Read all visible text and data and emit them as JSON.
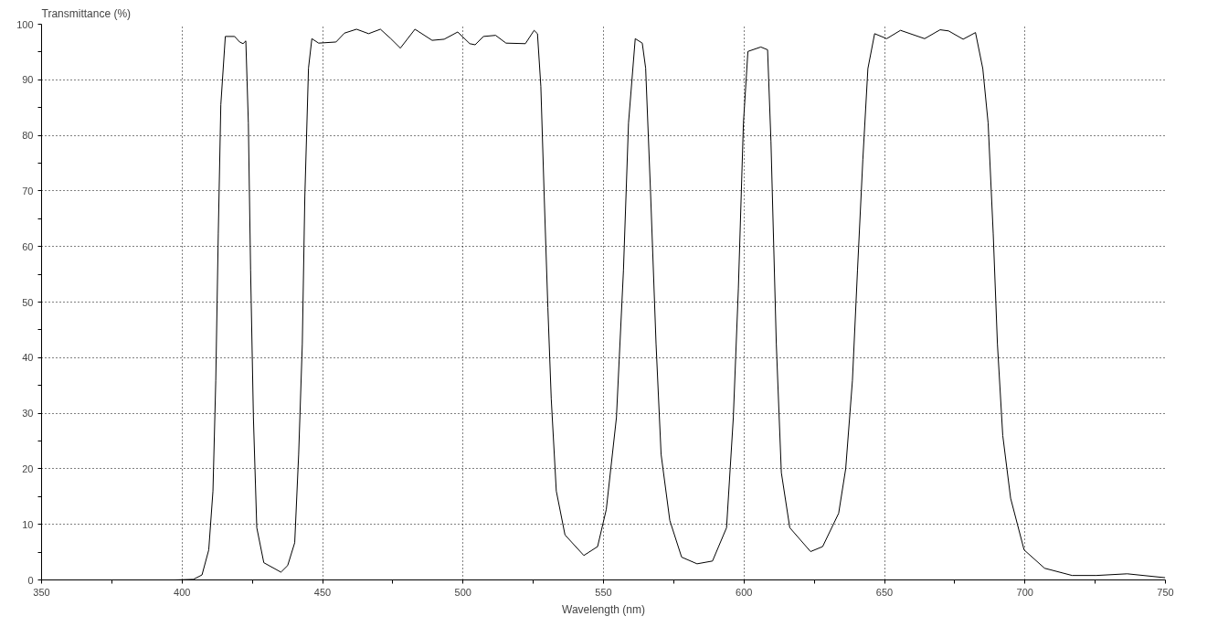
{
  "chart_data": {
    "type": "line",
    "xlabel": "Wavelength (nm)",
    "ylabel": "Transmittance (%)",
    "xlim": [
      350,
      750
    ],
    "ylim": [
      0,
      100
    ],
    "xticks": [
      350,
      {
        "value": 375,
        "label": null
      },
      400,
      {
        "value": 425,
        "label": null
      },
      450,
      {
        "value": 475,
        "label": null
      },
      500,
      {
        "value": 525,
        "label": null
      },
      550,
      {
        "value": 575,
        "label": null
      },
      600,
      {
        "value": 625,
        "label": null
      },
      650,
      {
        "value": 675,
        "label": null
      },
      700,
      {
        "value": 725,
        "label": null
      },
      750
    ],
    "yticks": [
      0,
      {
        "value": 5,
        "label": null
      },
      10,
      {
        "value": 15,
        "label": null
      },
      20,
      {
        "value": 25,
        "label": null
      },
      30,
      {
        "value": 35,
        "label": null
      },
      40,
      {
        "value": 45,
        "label": null
      },
      50,
      {
        "value": 55,
        "label": null
      },
      60,
      {
        "value": 65,
        "label": null
      },
      70,
      {
        "value": 75,
        "label": null
      },
      80,
      {
        "value": 85,
        "label": null
      },
      90,
      {
        "value": 95,
        "label": null
      },
      100
    ],
    "grid": true,
    "line_style": "solid",
    "series": [
      {
        "color": "#000000",
        "x": [
          350,
          397.3,
          404,
          407.1,
          409.5,
          411,
          412,
          412.9,
          413.8,
          415.4,
          418.7,
          420.5,
          421.7,
          422.7,
          423.6,
          424.4,
          425.4,
          426.6,
          429.1,
          435.2,
          437.6,
          440.1,
          441.5,
          442.8,
          443.7,
          445,
          446.2,
          448.6,
          454.8,
          457.8,
          462.1,
          466.4,
          470.6,
          474.3,
          477.7,
          482.9,
          489,
          493.3,
          498.1,
          502.4,
          504.3,
          507.3,
          511.6,
          515.3,
          522.2,
          525.3,
          526.5,
          527.7,
          528.9,
          530.2,
          531.4,
          533.2,
          536.3,
          543,
          547.9,
          551,
          554.6,
          557.1,
          558.9,
          561.3,
          563.8,
          565,
          566.8,
          568.7,
          570.5,
          573.6,
          577.8,
          583.3,
          588.8,
          593.8,
          596.2,
          598,
          599.8,
          601.4,
          606,
          608.4,
          609.6,
          611.5,
          613.3,
          616.3,
          623.7,
          628,
          633.7,
          636.2,
          638.6,
          640.4,
          642.3,
          644.1,
          646.5,
          650.8,
          655.7,
          664.3,
          669.8,
          672.8,
          678,
          682.4,
          685,
          686.9,
          688.7,
          690.2,
          692.1,
          694.9,
          699.7,
          707,
          716.8,
          725.4,
          736.4,
          749.9
        ],
        "values": [
          0,
          0,
          0.1,
          0.9,
          5.4,
          16,
          35.9,
          62.4,
          85.5,
          97.8,
          97.8,
          96.8,
          96.5,
          97,
          82.2,
          55.7,
          29.2,
          9.4,
          3.1,
          1.4,
          2.6,
          6.7,
          22.6,
          42.5,
          69,
          92.1,
          97.4,
          96.6,
          96.8,
          98.4,
          99.1,
          98.3,
          99.1,
          97.4,
          95.7,
          99.1,
          97.1,
          97.3,
          98.6,
          96.5,
          96.3,
          97.8,
          98,
          96.6,
          96.5,
          98.9,
          98.3,
          88.8,
          69,
          49,
          32.6,
          16,
          8.1,
          4.4,
          6,
          12.7,
          29.2,
          55.7,
          82.2,
          97.4,
          96.6,
          92.1,
          69,
          42.5,
          22.6,
          10.7,
          4.1,
          2.9,
          3.4,
          9.4,
          29.2,
          52.4,
          82.2,
          95.1,
          95.9,
          95.4,
          78.9,
          42.5,
          19.3,
          9.4,
          5.1,
          6,
          12,
          20,
          35.9,
          55.7,
          75.6,
          92,
          98.3,
          97.4,
          98.9,
          97.4,
          99,
          98.8,
          97.3,
          98.5,
          92,
          82.2,
          62.4,
          42.5,
          26,
          14.7,
          5.4,
          2.1,
          0.8,
          0.8,
          1.1,
          0.4
        ]
      }
    ]
  }
}
